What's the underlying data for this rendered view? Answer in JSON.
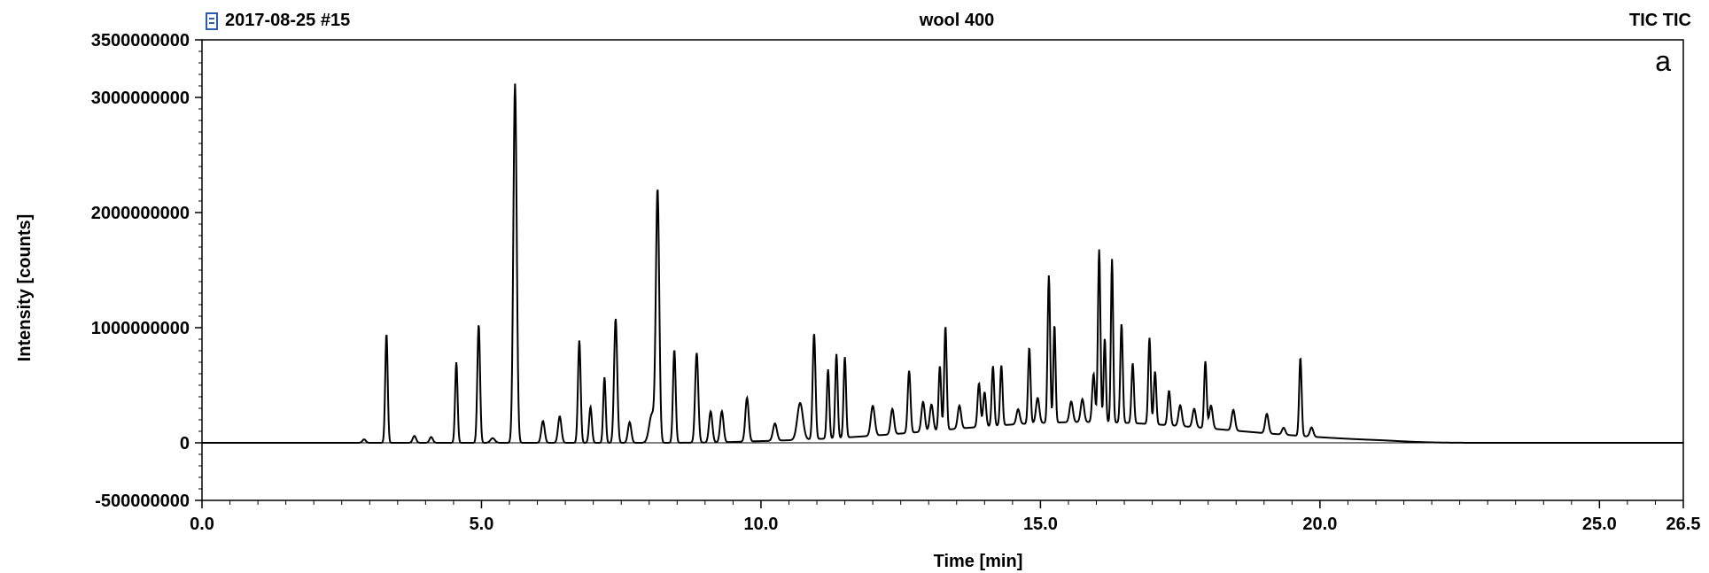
{
  "header": {
    "left": "2017-08-25 #15",
    "center": "wool 400",
    "right": "TIC TIC",
    "icon": "document-icon"
  },
  "chart_data": {
    "type": "line",
    "panel_label": "a",
    "xlabel": "Time [min]",
    "ylabel": "Intensity [counts]",
    "xlim": [
      0.0,
      26.5
    ],
    "ylim": [
      -500000000,
      3500000000
    ],
    "x_ticks": [
      0.0,
      5.0,
      10.0,
      15.0,
      20.0,
      25.0,
      26.5
    ],
    "x_tick_labels": [
      "0.0",
      "5.0",
      "10.0",
      "15.0",
      "20.0",
      "25.0",
      "26.5"
    ],
    "y_ticks": [
      -500000000,
      0,
      1000000000,
      2000000000,
      3000000000,
      3500000000
    ],
    "y_tick_labels": [
      "-500000000",
      "0",
      "1000000000",
      "2000000000",
      "3000000000",
      "3500000000"
    ],
    "grid": false,
    "line_color": "#000000",
    "baseline": 0,
    "peaks": [
      {
        "t": 2.9,
        "h": 30000000,
        "w": 0.03
      },
      {
        "t": 3.3,
        "h": 950000000,
        "w": 0.022
      },
      {
        "t": 3.8,
        "h": 60000000,
        "w": 0.03
      },
      {
        "t": 4.1,
        "h": 50000000,
        "w": 0.03
      },
      {
        "t": 4.55,
        "h": 700000000,
        "w": 0.022
      },
      {
        "t": 4.95,
        "h": 1030000000,
        "w": 0.024
      },
      {
        "t": 5.2,
        "h": 40000000,
        "w": 0.04
      },
      {
        "t": 5.6,
        "h": 3120000000,
        "w": 0.03
      },
      {
        "t": 6.1,
        "h": 190000000,
        "w": 0.03
      },
      {
        "t": 6.4,
        "h": 230000000,
        "w": 0.03
      },
      {
        "t": 6.75,
        "h": 890000000,
        "w": 0.024
      },
      {
        "t": 6.95,
        "h": 310000000,
        "w": 0.025
      },
      {
        "t": 7.2,
        "h": 570000000,
        "w": 0.022
      },
      {
        "t": 7.4,
        "h": 1080000000,
        "w": 0.028
      },
      {
        "t": 7.65,
        "h": 180000000,
        "w": 0.03
      },
      {
        "t": 8.05,
        "h": 250000000,
        "w": 0.05
      },
      {
        "t": 8.15,
        "h": 2180000000,
        "w": 0.03
      },
      {
        "t": 8.45,
        "h": 810000000,
        "w": 0.024
      },
      {
        "t": 8.85,
        "h": 780000000,
        "w": 0.028
      },
      {
        "t": 9.1,
        "h": 270000000,
        "w": 0.03
      },
      {
        "t": 9.3,
        "h": 270000000,
        "w": 0.03
      },
      {
        "t": 9.75,
        "h": 380000000,
        "w": 0.03
      },
      {
        "t": 10.25,
        "h": 150000000,
        "w": 0.035
      },
      {
        "t": 10.7,
        "h": 320000000,
        "w": 0.05
      },
      {
        "t": 10.95,
        "h": 920000000,
        "w": 0.025
      },
      {
        "t": 11.2,
        "h": 600000000,
        "w": 0.022
      },
      {
        "t": 11.35,
        "h": 730000000,
        "w": 0.022
      },
      {
        "t": 11.5,
        "h": 700000000,
        "w": 0.022
      },
      {
        "t": 12.0,
        "h": 260000000,
        "w": 0.035
      },
      {
        "t": 12.35,
        "h": 220000000,
        "w": 0.03
      },
      {
        "t": 12.65,
        "h": 540000000,
        "w": 0.025
      },
      {
        "t": 12.9,
        "h": 260000000,
        "w": 0.03
      },
      {
        "t": 13.05,
        "h": 230000000,
        "w": 0.03
      },
      {
        "t": 13.2,
        "h": 560000000,
        "w": 0.022
      },
      {
        "t": 13.3,
        "h": 900000000,
        "w": 0.022
      },
      {
        "t": 13.55,
        "h": 200000000,
        "w": 0.03
      },
      {
        "t": 13.9,
        "h": 380000000,
        "w": 0.025
      },
      {
        "t": 14.0,
        "h": 300000000,
        "w": 0.025
      },
      {
        "t": 14.15,
        "h": 520000000,
        "w": 0.022
      },
      {
        "t": 14.3,
        "h": 520000000,
        "w": 0.022
      },
      {
        "t": 14.6,
        "h": 130000000,
        "w": 0.03
      },
      {
        "t": 14.8,
        "h": 660000000,
        "w": 0.022
      },
      {
        "t": 14.95,
        "h": 220000000,
        "w": 0.03
      },
      {
        "t": 15.15,
        "h": 1280000000,
        "w": 0.022
      },
      {
        "t": 15.25,
        "h": 850000000,
        "w": 0.02
      },
      {
        "t": 15.55,
        "h": 180000000,
        "w": 0.03
      },
      {
        "t": 15.75,
        "h": 200000000,
        "w": 0.03
      },
      {
        "t": 15.95,
        "h": 420000000,
        "w": 0.025
      },
      {
        "t": 16.05,
        "h": 1500000000,
        "w": 0.022
      },
      {
        "t": 16.15,
        "h": 730000000,
        "w": 0.02
      },
      {
        "t": 16.28,
        "h": 1420000000,
        "w": 0.02
      },
      {
        "t": 16.45,
        "h": 860000000,
        "w": 0.022
      },
      {
        "t": 16.65,
        "h": 520000000,
        "w": 0.022
      },
      {
        "t": 16.95,
        "h": 750000000,
        "w": 0.022
      },
      {
        "t": 17.05,
        "h": 460000000,
        "w": 0.022
      },
      {
        "t": 17.3,
        "h": 300000000,
        "w": 0.025
      },
      {
        "t": 17.5,
        "h": 180000000,
        "w": 0.03
      },
      {
        "t": 17.75,
        "h": 160000000,
        "w": 0.03
      },
      {
        "t": 17.95,
        "h": 580000000,
        "w": 0.022
      },
      {
        "t": 18.05,
        "h": 200000000,
        "w": 0.03
      },
      {
        "t": 18.45,
        "h": 180000000,
        "w": 0.03
      },
      {
        "t": 19.05,
        "h": 170000000,
        "w": 0.03
      },
      {
        "t": 19.35,
        "h": 60000000,
        "w": 0.03
      },
      {
        "t": 19.65,
        "h": 680000000,
        "w": 0.022
      },
      {
        "t": 19.85,
        "h": 80000000,
        "w": 0.03
      }
    ],
    "hump": {
      "t": 15.8,
      "h": 180000000,
      "w": 2.6
    }
  }
}
